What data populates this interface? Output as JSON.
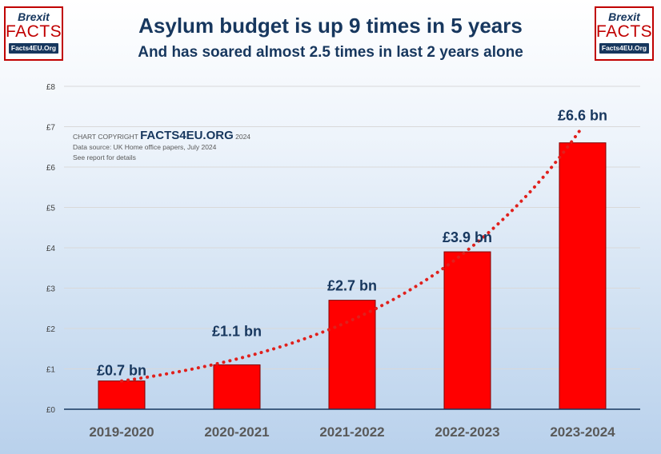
{
  "logo": {
    "line1": "Brexit",
    "line2": "FACTS",
    "line3": "Facts4EU.Org"
  },
  "header": {
    "title": "Asylum budget is up 9 times in 5 years",
    "subtitle": "And has soared almost 2.5 times in last 2 years alone"
  },
  "copyright": {
    "prefix": "CHART COPYRIGHT ",
    "brand": "FACTS4EU.ORG",
    "year": " 2024",
    "source": "Data source: UK Home office papers, July 2024",
    "note": "See report for details"
  },
  "colors": {
    "bar": "#ff0000",
    "bar_border": "#7f0000",
    "trend": "#e0201c",
    "axis": "#17375e",
    "grid": "#d9d9d9"
  },
  "chart_data": {
    "type": "bar",
    "categories": [
      "2019-2020",
      "2020-2021",
      "2021-2022",
      "2022-2023",
      "2023-2024"
    ],
    "values": [
      0.7,
      1.1,
      2.7,
      3.9,
      6.6
    ],
    "data_labels": [
      "£0.7 bn",
      "£1.1 bn",
      "£2.7 bn",
      "£3.9 bn",
      "£6.6 bn"
    ],
    "ylim": [
      0,
      8
    ],
    "yticks": [
      0,
      1,
      2,
      3,
      4,
      5,
      6,
      7,
      8
    ],
    "ytick_labels": [
      "£0",
      "£1",
      "£2",
      "£3",
      "£4",
      "£5",
      "£6",
      "£7",
      "£8"
    ],
    "title": "Asylum budget is up 9 times in 5 years",
    "xlabel": "",
    "ylabel": "",
    "grid": true,
    "trendline": {
      "type": "exponential",
      "style": "dotted",
      "start_value": 0.7,
      "end_value": 7.0
    }
  }
}
